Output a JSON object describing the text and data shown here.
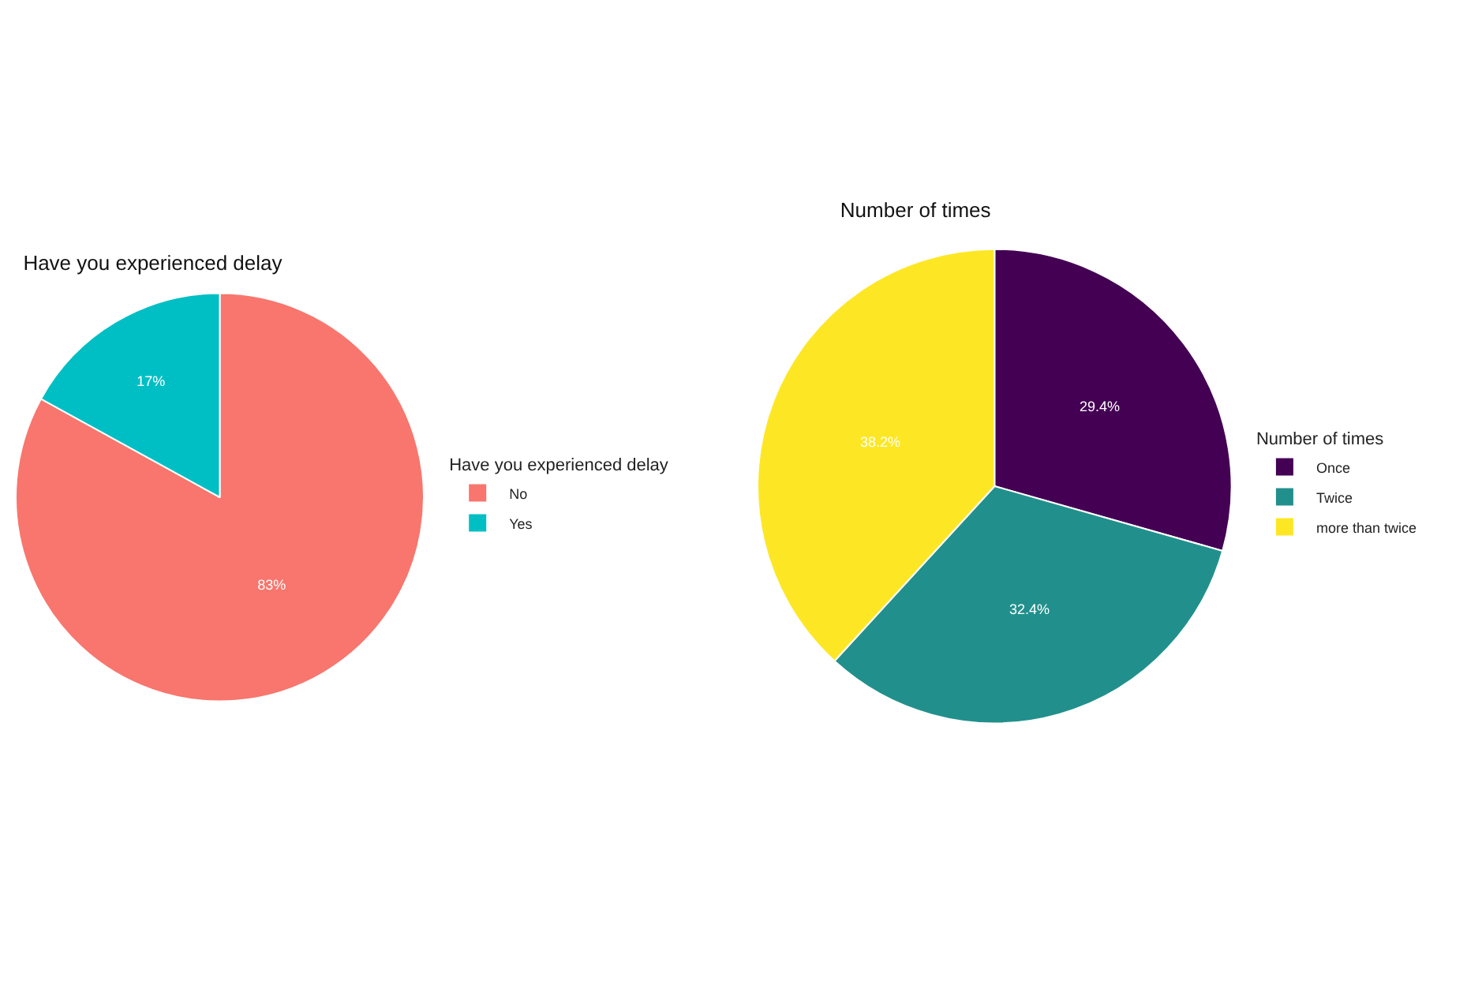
{
  "chart_data": [
    {
      "type": "pie",
      "title": "Have you experienced delay",
      "legend_title": "Have you experienced delay",
      "categories": [
        "No",
        "Yes"
      ],
      "values": [
        83,
        17
      ],
      "colors": [
        "#f8766d",
        "#00bfc4"
      ],
      "value_labels": [
        "83%",
        "17%"
      ],
      "legend": "right"
    },
    {
      "type": "pie",
      "title": "Number of times",
      "legend_title": "Number of times",
      "categories": [
        "Once",
        "Twice",
        "more than twice"
      ],
      "values": [
        29.4,
        32.4,
        38.2
      ],
      "colors": [
        "#440154",
        "#21908c",
        "#fde725"
      ],
      "value_labels": [
        "29.4%",
        "32.4%",
        "38.2%"
      ],
      "legend": "right"
    }
  ]
}
